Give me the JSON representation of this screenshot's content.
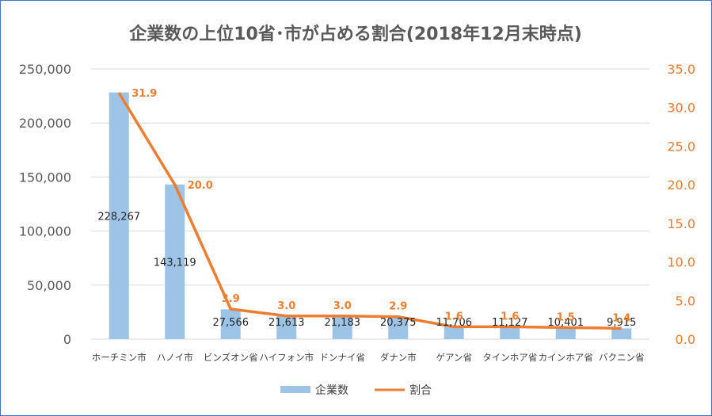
{
  "chart_data": {
    "type": "bar",
    "title": "企業数の上位10省･市が占める割合(2018年12月末時点)",
    "categories": [
      "ホーチミン市",
      "ハノイ市",
      "ビンズオン省",
      "ハイフォン市",
      "ドンナイ省",
      "ダナン市",
      "ゲアン省",
      "タインホア省",
      "カインホア省",
      "バクニン省"
    ],
    "series": [
      {
        "name": "企業数",
        "type": "bar",
        "axis": "left",
        "color": "#9dc3e6",
        "values": [
          228267,
          143119,
          27566,
          21613,
          21183,
          20375,
          11706,
          11127,
          10401,
          9915
        ],
        "labels": [
          "228,267",
          "143,119",
          "27,566",
          "21,613",
          "21,183",
          "20,375",
          "11,706",
          "11,127",
          "10,401",
          "9,915"
        ]
      },
      {
        "name": "割合",
        "type": "line",
        "axis": "right",
        "color": "#ed7d31",
        "values": [
          31.9,
          20.0,
          3.9,
          3.0,
          3.0,
          2.9,
          1.6,
          1.6,
          1.5,
          1.4
        ],
        "labels": [
          "31.9",
          "20.0",
          "3.9",
          "3.0",
          "3.0",
          "2.9",
          "1.6",
          "1.6",
          "1.5",
          "1.4"
        ]
      }
    ],
    "y_left": {
      "ylim": [
        0,
        250000
      ],
      "ticks": [
        0,
        50000,
        100000,
        150000,
        200000,
        250000
      ],
      "tick_labels": [
        "0",
        "50,000",
        "100,000",
        "150,000",
        "200,000",
        "250,000"
      ]
    },
    "y_right": {
      "ylim": [
        0,
        35
      ],
      "ticks": [
        0,
        5,
        10,
        15,
        20,
        25,
        30,
        35
      ],
      "tick_labels": [
        "0.0",
        "5.0",
        "10.0",
        "15.0",
        "20.0",
        "25.0",
        "30.0",
        "35.0"
      ]
    },
    "grid": true,
    "legend_position": "bottom"
  }
}
